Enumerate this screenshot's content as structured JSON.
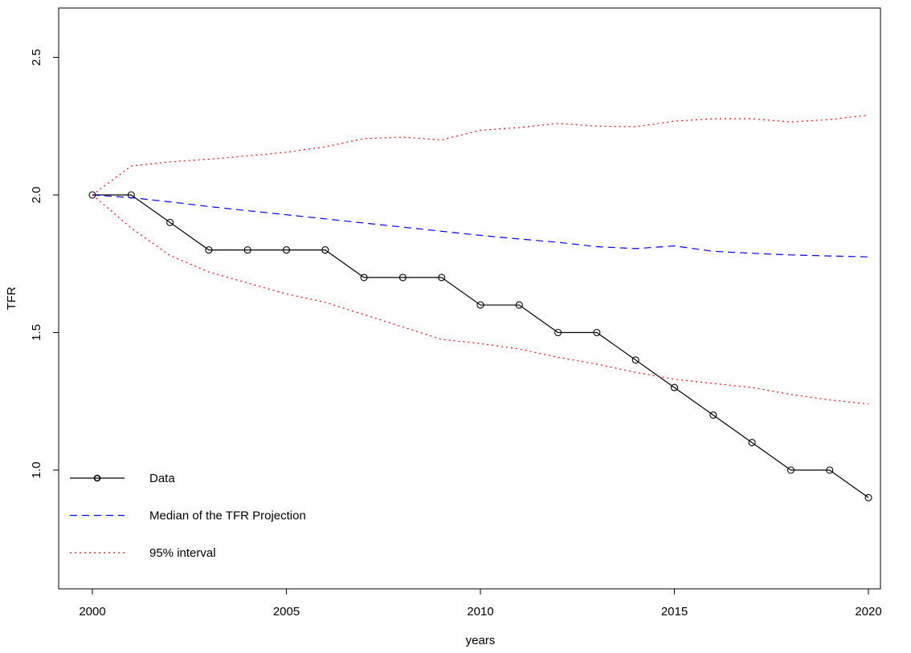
{
  "chart_data": {
    "type": "line",
    "title": "",
    "xlabel": "years",
    "ylabel": "TFR",
    "x_ticks": [
      "2000",
      "2005",
      "2010",
      "2015",
      "2020"
    ],
    "y_ticks": [
      "1.0",
      "1.5",
      "2.0",
      "2.5"
    ],
    "xlim": [
      2000,
      2020
    ],
    "ylim": [
      0.6,
      2.65
    ],
    "grid": false,
    "legend_position": "bottom-left",
    "colors": {
      "data": "#000000",
      "median": "#0000ff",
      "interval": "#ff0000"
    },
    "x": [
      2000,
      2001,
      2002,
      2003,
      2004,
      2005,
      2006,
      2007,
      2008,
      2009,
      2010,
      2011,
      2012,
      2013,
      2014,
      2015,
      2016,
      2017,
      2018,
      2019,
      2020
    ],
    "series": [
      {
        "name": "Data",
        "color": "#000000",
        "line": "solid",
        "marker": "open-circle",
        "values": [
          2.0,
          2.0,
          1.9,
          1.8,
          1.8,
          1.8,
          1.8,
          1.7,
          1.7,
          1.7,
          1.6,
          1.6,
          1.5,
          1.5,
          1.4,
          1.3,
          1.2,
          1.1,
          1.0,
          1.0,
          0.9
        ]
      },
      {
        "name": "Median of the TFR Projection",
        "color": "#0000ff",
        "line": "dashed",
        "marker": "none",
        "values": [
          2.0,
          1.99,
          1.975,
          1.958,
          1.943,
          1.928,
          1.913,
          1.898,
          1.883,
          1.868,
          1.853,
          1.84,
          1.828,
          1.812,
          1.805,
          1.815,
          1.795,
          1.788,
          1.782,
          1.778,
          1.775
        ]
      },
      {
        "name": "95% interval (upper bound)",
        "color": "#ff0000",
        "line": "dotted",
        "marker": "none",
        "values": [
          2.0,
          2.105,
          2.12,
          2.13,
          2.142,
          2.155,
          2.175,
          2.205,
          2.21,
          2.2,
          2.235,
          2.245,
          2.26,
          2.25,
          2.248,
          2.268,
          2.277,
          2.277,
          2.265,
          2.274,
          2.29
        ]
      },
      {
        "name": "95% interval (lower bound)",
        "color": "#ff0000",
        "line": "dotted",
        "marker": "none",
        "values": [
          2.0,
          1.88,
          1.78,
          1.72,
          1.68,
          1.64,
          1.61,
          1.565,
          1.52,
          1.475,
          1.46,
          1.44,
          1.41,
          1.385,
          1.355,
          1.33,
          1.315,
          1.3,
          1.275,
          1.255,
          1.24
        ]
      }
    ],
    "legend": [
      {
        "label": "Data",
        "color": "#000000",
        "line": "solid",
        "marker": "open-circle"
      },
      {
        "label": "Median of the TFR Projection",
        "color": "#0000ff",
        "line": "dashed",
        "marker": "none"
      },
      {
        "label": "95% interval",
        "color": "#ff0000",
        "line": "dotted",
        "marker": "none"
      }
    ]
  }
}
